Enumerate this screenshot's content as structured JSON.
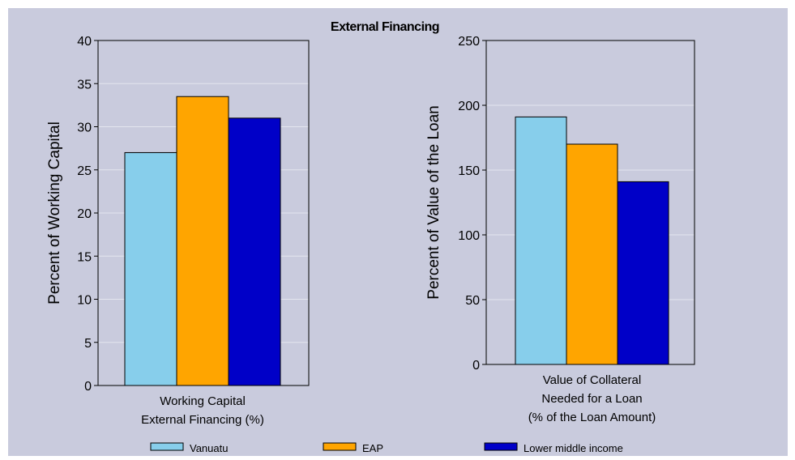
{
  "chart_title": "External Financing",
  "colors": {
    "background": "#c9cbdd",
    "grid": "#e4e6ee",
    "Vanuatu": "#87ceeb",
    "EAP": "#ffa500",
    "Lower middle income": "#0000c8"
  },
  "legend": [
    "Vanuatu",
    "EAP",
    "Lower middle income"
  ],
  "chart_data": [
    {
      "type": "bar",
      "title": "External Financing",
      "categories": [
        "Working Capital External Financing (%)"
      ],
      "category_lines": [
        "Working Capital",
        "External Financing (%)"
      ],
      "series": [
        {
          "name": "Vanuatu",
          "values": [
            27
          ]
        },
        {
          "name": "EAP",
          "values": [
            33.5
          ]
        },
        {
          "name": "Lower middle income",
          "values": [
            31
          ]
        }
      ],
      "ylabel": "Percent of Working Capital",
      "ylim": [
        0,
        40
      ],
      "yticks": [
        0,
        5,
        10,
        15,
        20,
        25,
        30,
        35,
        40
      ],
      "grid": true
    },
    {
      "type": "bar",
      "categories": [
        "Value of Collateral Needed for a Loan (% of the Loan Amount)"
      ],
      "category_lines": [
        "Value of Collateral",
        "Needed for a Loan",
        "(% of the Loan Amount)"
      ],
      "series": [
        {
          "name": "Vanuatu",
          "values": [
            191
          ]
        },
        {
          "name": "EAP",
          "values": [
            170
          ]
        },
        {
          "name": "Lower middle income",
          "values": [
            141
          ]
        }
      ],
      "ylabel": "Percent of Value of the Loan",
      "ylim": [
        0,
        250
      ],
      "yticks": [
        0,
        50,
        100,
        150,
        200,
        250
      ],
      "grid": true
    }
  ]
}
